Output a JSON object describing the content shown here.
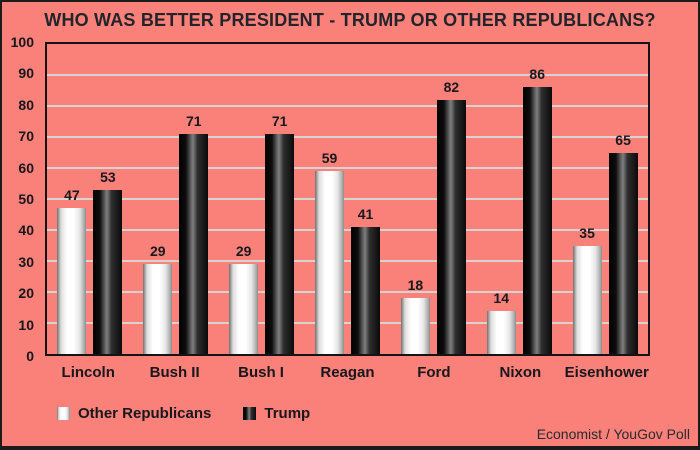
{
  "title": "WHO WAS BETTER PRESIDENT - TRUMP OR OTHER REPUBLICANS?",
  "footer": {
    "source": "Economist / YouGov Poll"
  },
  "colors": {
    "background": "#fa8179",
    "outer_border": "#1c1c1c",
    "plot_border": "#141414",
    "gridline": "#d8d2d0",
    "text": "#17171d",
    "bar_other_republicans": "#ffffff",
    "bar_trump": "#1a1a1a"
  },
  "chart_data": {
    "type": "bar",
    "title": "WHO WAS BETTER PRESIDENT - TRUMP OR OTHER REPUBLICANS?",
    "categories": [
      "Lincoln",
      "Bush II",
      "Bush I",
      "Reagan",
      "Ford",
      "Nixon",
      "Eisenhower"
    ],
    "series": [
      {
        "name": "Other Republicans",
        "style": "white",
        "values": [
          47,
          29,
          29,
          59,
          18,
          14,
          35
        ]
      },
      {
        "name": "Trump",
        "style": "black",
        "values": [
          53,
          71,
          71,
          41,
          82,
          86,
          65
        ]
      }
    ],
    "xlabel": "",
    "ylabel": "",
    "ylim": [
      0,
      100
    ],
    "ytick_step": 10,
    "grid": true,
    "bar_value_labels": true,
    "legend_position": "bottom-left",
    "source": "Economist / YouGov Poll"
  }
}
